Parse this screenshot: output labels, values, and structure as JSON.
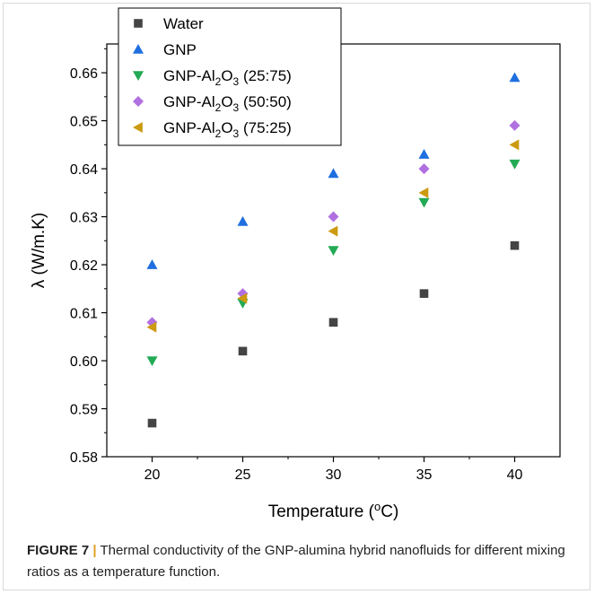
{
  "chart_data": {
    "type": "scatter",
    "xlabel": "Temperature (",
    "xlabel_sup": "o",
    "xlabel_tail": "C)",
    "ylabel": "λ (W/m.K)",
    "xticks": [
      "20",
      "25",
      "30",
      "35",
      "40"
    ],
    "yticks": [
      "0.58",
      "0.59",
      "0.60",
      "0.61",
      "0.62",
      "0.63",
      "0.64",
      "0.65",
      "0.66"
    ],
    "xlim": [
      17.5,
      42.5
    ],
    "ylim": [
      0.58,
      0.666
    ],
    "legend_position": "top-left",
    "x": [
      20,
      25,
      30,
      35,
      40
    ],
    "series": [
      {
        "name": "Water",
        "name_parts": [
          "Water"
        ],
        "marker": "square",
        "color": "#444444",
        "values": [
          0.587,
          0.602,
          0.608,
          0.614,
          0.624
        ]
      },
      {
        "name": "GNP",
        "name_parts": [
          "GNP"
        ],
        "marker": "triangle-up",
        "color": "#1f6fe0",
        "values": [
          0.62,
          0.629,
          0.639,
          0.643,
          0.659
        ]
      },
      {
        "name": "GNP-Al2O3 (25:75)",
        "name_parts": [
          "GNP-Al",
          "2",
          "O",
          "3",
          " (25:75)"
        ],
        "marker": "triangle-down",
        "color": "#22aa55",
        "values": [
          0.6,
          0.612,
          0.623,
          0.633,
          0.641
        ]
      },
      {
        "name": "GNP-Al2O3 (50:50)",
        "name_parts": [
          "GNP-Al",
          "2",
          "O",
          "3",
          " (50:50)"
        ],
        "marker": "diamond",
        "color": "#b070e0",
        "values": [
          0.608,
          0.614,
          0.63,
          0.64,
          0.649
        ]
      },
      {
        "name": "GNP-Al2O3 (75:25)",
        "name_parts": [
          "GNP-Al",
          "2",
          "O",
          "3",
          " (75:25)"
        ],
        "marker": "triangle-left",
        "color": "#cc9a10",
        "values": [
          0.607,
          0.613,
          0.627,
          0.635,
          0.645
        ]
      }
    ]
  },
  "caption": {
    "label": "FIGURE 7",
    "separator": "|",
    "text": " Thermal conductivity of the GNP-alumina hybrid nanofluids for different mixing ratios as a temperature function."
  }
}
